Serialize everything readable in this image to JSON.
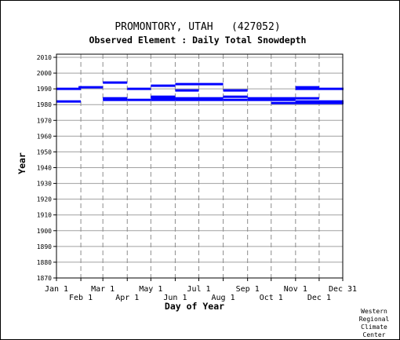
{
  "chart_data": {
    "type": "gantt",
    "title": "PROMONTORY, UTAH   (427052)",
    "subtitle": "Observed Element : Daily Total Snowdepth",
    "xlabel": "Day of Year",
    "ylabel": "Year",
    "x_ticks_top_row": [
      "Jan 1",
      "Mar 1",
      "May 1",
      "Jul 1",
      "Sep 1",
      "Nov 1",
      "Dec 31"
    ],
    "x_ticks_bottom_row": [
      "Feb 1",
      "Apr 1",
      "Jun 1",
      "Aug 1",
      "Oct 1",
      "Dec 1"
    ],
    "x_tick_days": {
      "Jan 1": 1,
      "Feb 1": 32,
      "Mar 1": 60,
      "Apr 1": 91,
      "May 1": 121,
      "Jun 1": 152,
      "Jul 1": 182,
      "Aug 1": 213,
      "Sep 1": 244,
      "Oct 1": 274,
      "Nov 1": 305,
      "Dec 1": 335,
      "Dec 31": 365
    },
    "xlim": [
      1,
      365
    ],
    "ylim": [
      1870,
      2012
    ],
    "y_ticks": [
      1870,
      1880,
      1890,
      1900,
      1910,
      1920,
      1930,
      1940,
      1950,
      1960,
      1970,
      1980,
      1990,
      2000,
      2010
    ],
    "grid": true,
    "series_color": "#0000ff",
    "segments": [
      {
        "year": 1990,
        "start": 1,
        "end": 31
      },
      {
        "year": 1982,
        "start": 1,
        "end": 31
      },
      {
        "year": 1991,
        "start": 29,
        "end": 59
      },
      {
        "year": 1994,
        "start": 60,
        "end": 90
      },
      {
        "year": 1984,
        "start": 60,
        "end": 90
      },
      {
        "year": 1983,
        "start": 60,
        "end": 90
      },
      {
        "year": 1990,
        "start": 91,
        "end": 120
      },
      {
        "year": 1983,
        "start": 91,
        "end": 120
      },
      {
        "year": 1992,
        "start": 121,
        "end": 151
      },
      {
        "year": 1985,
        "start": 121,
        "end": 151
      },
      {
        "year": 1984,
        "start": 121,
        "end": 151
      },
      {
        "year": 1983,
        "start": 121,
        "end": 151
      },
      {
        "year": 1993,
        "start": 152,
        "end": 212
      },
      {
        "year": 1989,
        "start": 152,
        "end": 181
      },
      {
        "year": 1984,
        "start": 152,
        "end": 212
      },
      {
        "year": 1983,
        "start": 152,
        "end": 212
      },
      {
        "year": 1989,
        "start": 213,
        "end": 243
      },
      {
        "year": 1985,
        "start": 213,
        "end": 243
      },
      {
        "year": 1983,
        "start": 213,
        "end": 243
      },
      {
        "year": 1984,
        "start": 244,
        "end": 304
      },
      {
        "year": 1983,
        "start": 244,
        "end": 304
      },
      {
        "year": 1981,
        "start": 274,
        "end": 304
      },
      {
        "year": 1991,
        "start": 305,
        "end": 334
      },
      {
        "year": 1990,
        "start": 305,
        "end": 334
      },
      {
        "year": 1984,
        "start": 305,
        "end": 334
      },
      {
        "year": 1982,
        "start": 305,
        "end": 365
      },
      {
        "year": 1981,
        "start": 305,
        "end": 365
      },
      {
        "year": 1990,
        "start": 335,
        "end": 365
      }
    ]
  },
  "credit_lines": [
    "Western",
    "Regional",
    "Climate",
    "Center"
  ]
}
